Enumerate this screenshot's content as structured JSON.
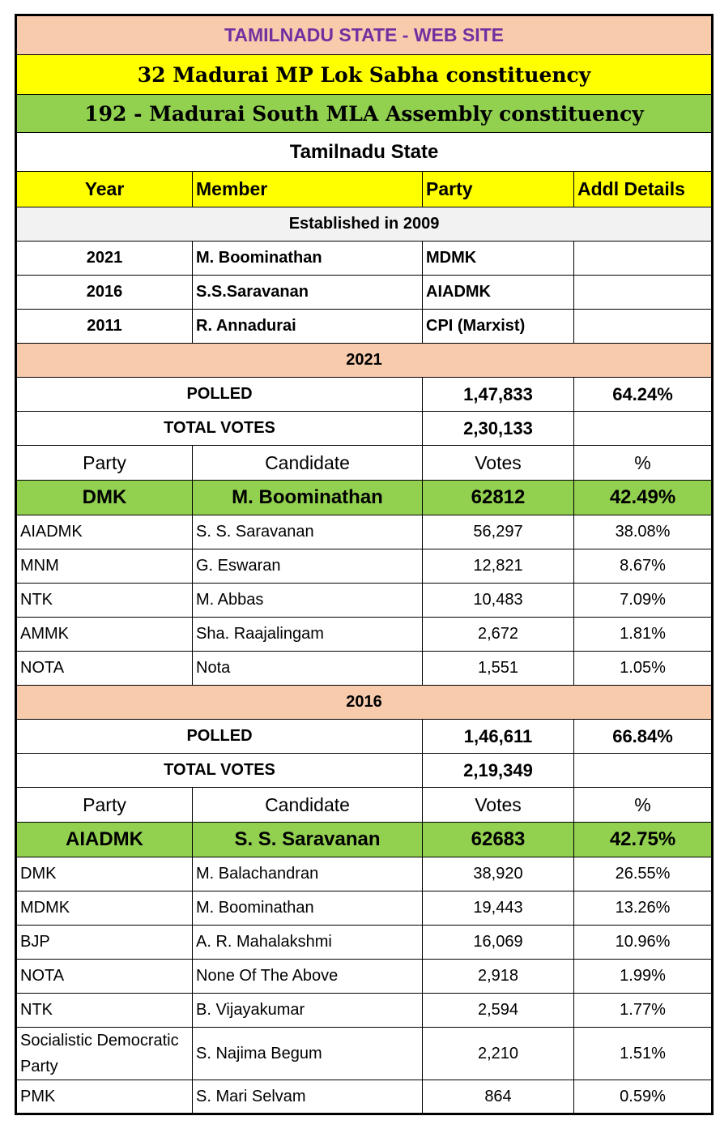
{
  "title": "TAMILNADU STATE - WEB SITE",
  "lok_sabha": "32 Madurai MP Lok Sabha constituency",
  "assembly": "192 - Madurai South MLA Assembly constituency",
  "state": "Tamilnadu State",
  "members_header": [
    "Year",
    "Member",
    "Party",
    "Addl Details"
  ],
  "established": "Established in 2009",
  "members": [
    {
      "year": "2021",
      "member": "M. Boominathan",
      "party": "MDMK",
      "details": ""
    },
    {
      "year": "2016",
      "member": "S.S.Saravanan",
      "party": "AIADMK",
      "details": ""
    },
    {
      "year": "2011",
      "member": "R. Annadurai",
      "party": "CPI (Marxist)",
      "details": ""
    }
  ],
  "elections": [
    {
      "year": "2021",
      "polled_label": "POLLED",
      "polled": "1,47,833",
      "polled_pct": "64.24%",
      "total_label": "TOTAL VOTES",
      "total": "2,30,133",
      "header": [
        "Party",
        "Candidate",
        "Votes",
        "%"
      ],
      "winner": {
        "party": "DMK",
        "candidate": "M. Boominathan",
        "votes": "62812",
        "pct": "42.49%"
      },
      "others": [
        {
          "party": "AIADMK",
          "candidate": "S. S. Saravanan",
          "votes": "56,297",
          "pct": "38.08%"
        },
        {
          "party": "MNM",
          "candidate": "G. Eswaran",
          "votes": "12,821",
          "pct": "8.67%"
        },
        {
          "party": "NTK",
          "candidate": "M. Abbas",
          "votes": "10,483",
          "pct": "7.09%"
        },
        {
          "party": "AMMK",
          "candidate": "Sha. Raajalingam",
          "votes": "2,672",
          "pct": "1.81%"
        },
        {
          "party": "NOTA",
          "candidate": "Nota",
          "votes": "1,551",
          "pct": "1.05%"
        }
      ]
    },
    {
      "year": "2016",
      "polled_label": "POLLED",
      "polled": "1,46,611",
      "polled_pct": "66.84%",
      "total_label": "TOTAL VOTES",
      "total": "2,19,349",
      "header": [
        "Party",
        "Candidate",
        "Votes",
        "%"
      ],
      "winner": {
        "party": "AIADMK",
        "candidate": "S. S. Saravanan",
        "votes": "62683",
        "pct": "42.75%"
      },
      "others": [
        {
          "party": "DMK",
          "candidate": "M. Balachandran",
          "votes": "38,920",
          "pct": "26.55%"
        },
        {
          "party": "MDMK",
          "candidate": "M. Boominathan",
          "votes": "19,443",
          "pct": "13.26%"
        },
        {
          "party": "BJP",
          "candidate": "A. R. Mahalakshmi",
          "votes": "16,069",
          "pct": "10.96%"
        },
        {
          "party": "NOTA",
          "candidate": "None Of The Above",
          "votes": "2,918",
          "pct": "1.99%"
        },
        {
          "party": "NTK",
          "candidate": "B. Vijayakumar",
          "votes": "2,594",
          "pct": "1.77%"
        },
        {
          "party": "Socialistic Democratic Party",
          "candidate": "S. Najima Begum",
          "votes": "2,210",
          "pct": "1.51%"
        },
        {
          "party": "PMK",
          "candidate": "S. Mari Selvam",
          "votes": "864",
          "pct": "0.59%"
        }
      ]
    }
  ]
}
